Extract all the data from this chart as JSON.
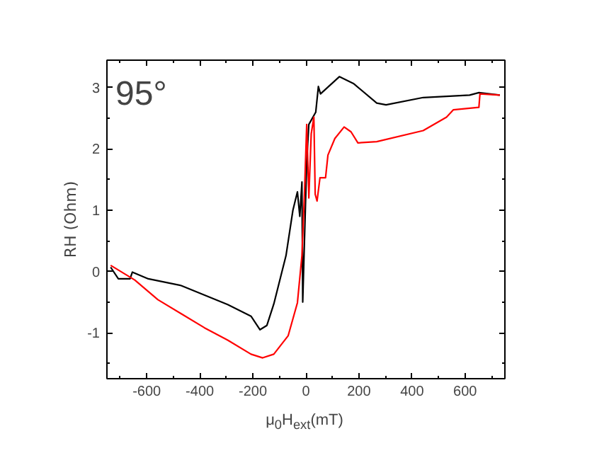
{
  "chart_data": {
    "type": "line",
    "xlabel": "μ$_{0}$H$_{ext}$(mT)",
    "ylabel": "RH (Ohm)",
    "annotations": [
      "95°"
    ],
    "xlim": [
      -750,
      750
    ],
    "ylim": [
      -1.75,
      3.45
    ],
    "xticks": [
      -600,
      -400,
      -200,
      0,
      200,
      400,
      600
    ],
    "yticks": [
      -1,
      0,
      1,
      2,
      3
    ],
    "grid": false,
    "series": [
      {
        "color": "#000000",
        "x": [
          -736,
          -707,
          -663,
          -654,
          -594,
          -470,
          -295,
          -207,
          -173,
          -147,
          -121,
          -75,
          -49,
          -32,
          -23,
          -15,
          -12,
          3,
          11,
          37,
          47,
          55,
          126,
          179,
          267,
          302,
          442,
          617,
          652,
          731
        ],
        "values": [
          0.07,
          -0.12,
          -0.12,
          -0.01,
          -0.12,
          -0.23,
          -0.54,
          -0.73,
          -0.95,
          -0.88,
          -0.53,
          0.26,
          1.0,
          1.3,
          0.9,
          1.46,
          -0.5,
          1.8,
          2.4,
          2.6,
          3.02,
          2.9,
          3.18,
          3.07,
          2.75,
          2.72,
          2.84,
          2.88,
          2.92,
          2.88
        ]
      },
      {
        "color": "#ff0000",
        "x": [
          -736,
          -645,
          -558,
          -470,
          -382,
          -295,
          -207,
          -163,
          -121,
          -67,
          -32,
          -15,
          -5,
          3,
          11,
          20,
          30,
          35,
          42,
          53,
          74,
          83,
          109,
          144,
          170,
          196,
          267,
          442,
          530,
          556,
          652,
          656,
          731
        ],
        "values": [
          0.1,
          -0.14,
          -0.46,
          -0.69,
          -0.92,
          -1.12,
          -1.35,
          -1.41,
          -1.35,
          -1.05,
          -0.51,
          0.26,
          1.33,
          2.4,
          1.2,
          2.25,
          2.52,
          1.26,
          1.15,
          1.53,
          1.53,
          1.9,
          2.17,
          2.36,
          2.28,
          2.1,
          2.12,
          2.3,
          2.52,
          2.64,
          2.68,
          2.9,
          2.88
        ]
      }
    ]
  }
}
